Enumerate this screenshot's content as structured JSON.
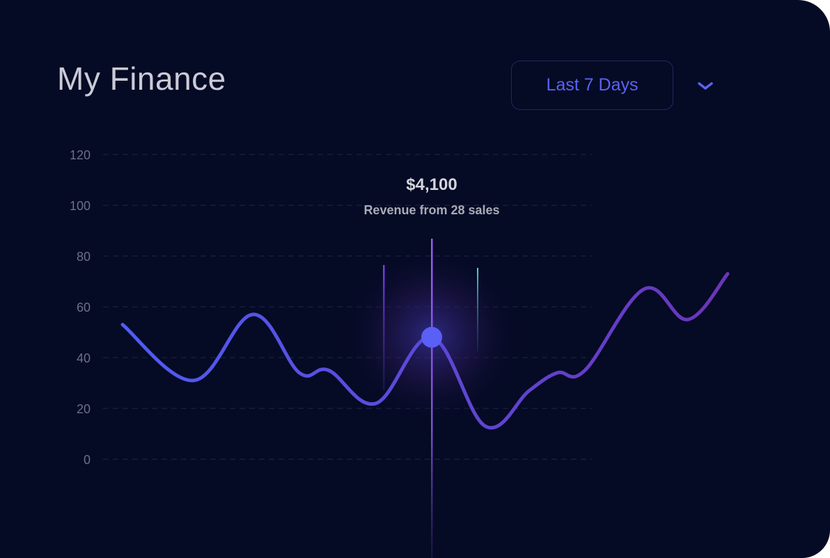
{
  "header": {
    "title": "My Finance",
    "range_label": "Last 7 Days",
    "dropdown_icon": "chevron-down-icon"
  },
  "tooltip": {
    "value": "$4,100",
    "label": "Revenue from 28 sales"
  },
  "colors": {
    "background": "#050a25",
    "line_start": "#4f5cf5",
    "line_end": "#6a35b8",
    "accent": "#5a63f2",
    "marker": "#5a5ff5",
    "cyan_bar": "#4fd6d6"
  },
  "chart_data": {
    "type": "line",
    "title": "",
    "xlabel": "",
    "ylabel": "",
    "ylim": [
      0,
      120
    ],
    "yticks": [
      "0",
      "20",
      "40",
      "60",
      "80",
      "100",
      "120"
    ],
    "grid": true,
    "series": [
      {
        "values": [
          53,
          31,
          57,
          34,
          35,
          22,
          48,
          13,
          27,
          34,
          35,
          67,
          55,
          73
        ]
      }
    ],
    "highlight_index": 6
  }
}
